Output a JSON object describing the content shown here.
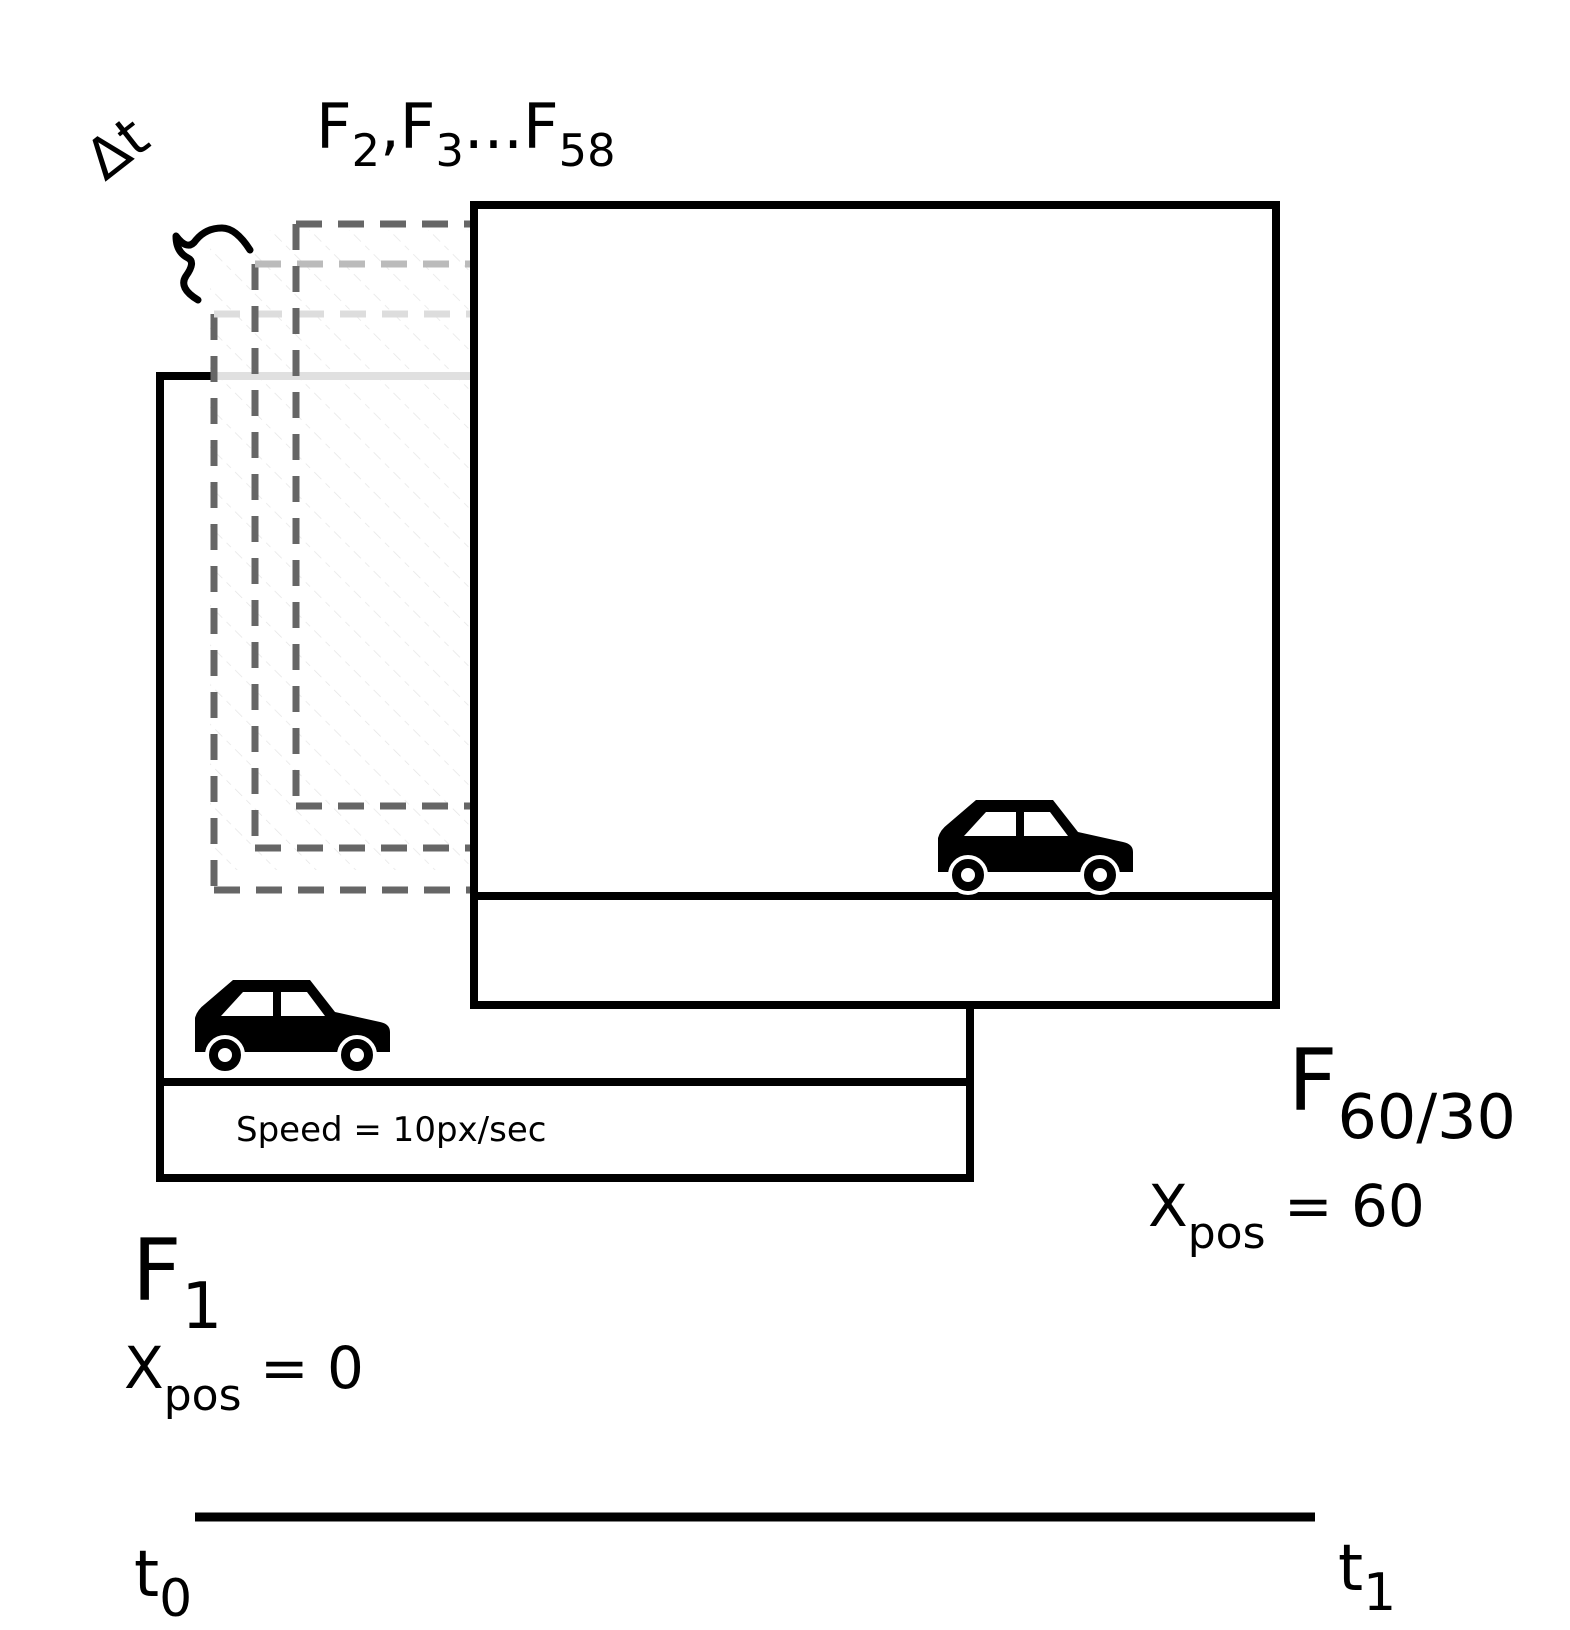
{
  "frame_first": {
    "name": "F",
    "index": "1",
    "xpos_var": "X",
    "xpos_sub": "pos",
    "xpos_eq": " = 0"
  },
  "frame_last": {
    "name": "F",
    "index": "60/30",
    "xpos_var": "X",
    "xpos_sub": "pos",
    "xpos_eq": " = 60"
  },
  "intermediate_frames": {
    "f2_name": "F",
    "f2_index": "2",
    "sep1": ",",
    "f3_name": "F",
    "f3_index": "3",
    "ellipsis": "...",
    "f58_name": "F",
    "f58_index": "58"
  },
  "delta_t": "Δt",
  "speed": "Speed = 10px/sec",
  "timeline": {
    "start_var": "t",
    "start_sub": "0",
    "end_var": "t",
    "end_sub": "1"
  },
  "icons": {
    "car_first": "car-icon",
    "car_last": "car-icon",
    "brace": "curly-brace-icon"
  },
  "colors": {
    "stroke": "#000000",
    "ghost_dark": "#666666",
    "ghost_light": "#bbbbbb",
    "ghost_lighter": "#dddddd"
  }
}
